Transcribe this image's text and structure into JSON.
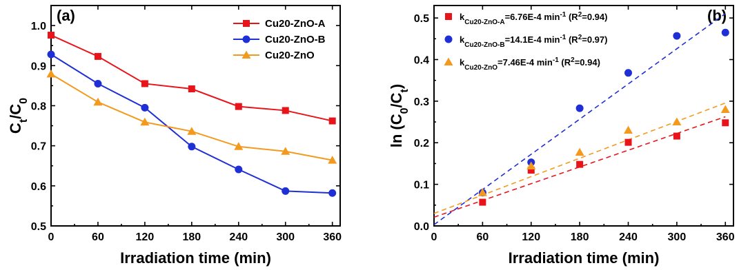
{
  "chart_data": [
    {
      "type": "line",
      "panel_label": "(a)",
      "xlabel": "Irradiation time (min)",
      "ylabel": {
        "main": "C",
        "sub1": "t",
        "mid": "/C",
        "sub2": "0"
      },
      "xlim": [
        0,
        370
      ],
      "ylim": [
        0.5,
        1.05
      ],
      "xticks": [
        0,
        60,
        120,
        180,
        240,
        300,
        360
      ],
      "yticks": [
        0.5,
        0.6,
        0.7,
        0.8,
        0.9,
        1.0
      ],
      "ytick_labels": [
        "0.5",
        "0.6",
        "0.7",
        "0.8",
        "0.9",
        "1.0"
      ],
      "legend_position": "top-right",
      "x": [
        0,
        60,
        120,
        180,
        240,
        300,
        360
      ],
      "series": [
        {
          "name": "Cu20-ZnO-A",
          "color": "#e8141a",
          "marker": "square",
          "values": [
            0.976,
            0.923,
            0.855,
            0.842,
            0.798,
            0.788,
            0.762
          ]
        },
        {
          "name": "Cu20-ZnO-B",
          "color": "#1f2fd6",
          "marker": "circle",
          "values": [
            0.928,
            0.855,
            0.795,
            0.698,
            0.641,
            0.587,
            0.582
          ]
        },
        {
          "name": "Cu20-ZnO",
          "color": "#f39a1e",
          "marker": "triangle",
          "values": [
            0.879,
            0.809,
            0.759,
            0.736,
            0.698,
            0.686,
            0.664
          ]
        }
      ]
    },
    {
      "type": "scatter",
      "panel_label": "(b)",
      "xlabel": "Irradiation time (min)",
      "ylabel": {
        "main": "ln (C",
        "sub1": "0",
        "mid": "/C",
        "sub2": "t",
        "end": ")"
      },
      "xlim": [
        0,
        370
      ],
      "ylim": [
        0,
        0.53
      ],
      "xticks": [
        0,
        60,
        120,
        180,
        240,
        300,
        360
      ],
      "yticks": [
        0.0,
        0.1,
        0.2,
        0.3,
        0.4,
        0.5
      ],
      "ytick_labels": [
        "0.0",
        "0.1",
        "0.2",
        "0.3",
        "0.4",
        "0.5"
      ],
      "legend_position": "top-left",
      "x": [
        60,
        120,
        180,
        240,
        300,
        360
      ],
      "series": [
        {
          "name": "Cu20-ZnO-A",
          "color": "#e8141a",
          "marker": "square",
          "values": [
            0.057,
            0.134,
            0.148,
            0.201,
            0.216,
            0.248
          ],
          "fit": [
            0.021,
            0.2626
          ],
          "legend": {
            "k": "k",
            "sub": "Cu20-ZnO-A",
            "eq": "=6.76E-4 min",
            "sup": "-1",
            "r": " (R",
            "r2": "2",
            "rend": "=0.94)"
          }
        },
        {
          "name": "Cu20-ZnO-B",
          "color": "#1f2fd6",
          "marker": "circle",
          "values": [
            0.08,
            0.153,
            0.283,
            0.368,
            0.457,
            0.465
          ],
          "fit": [
            0.003,
            0.5106
          ],
          "legend": {
            "k": "k",
            "sub": "Cu20-ZnO-B",
            "eq": "=14.1E-4 min",
            "sup": "-1",
            "r": " (R",
            "r2": "2",
            "rend": "=0.97)"
          }
        },
        {
          "name": "Cu20-ZnO",
          "color": "#f39a1e",
          "marker": "triangle",
          "values": [
            0.08,
            0.144,
            0.177,
            0.23,
            0.25,
            0.28
          ],
          "fit": [
            0.03,
            0.2956
          ],
          "legend": {
            "k": "k",
            "sub": "Cu20-ZnO",
            "eq": "=7.46E-4 min",
            "sup": "-1",
            "r": " (R",
            "r2": "2",
            "rend": "=0.94)"
          }
        }
      ]
    }
  ]
}
